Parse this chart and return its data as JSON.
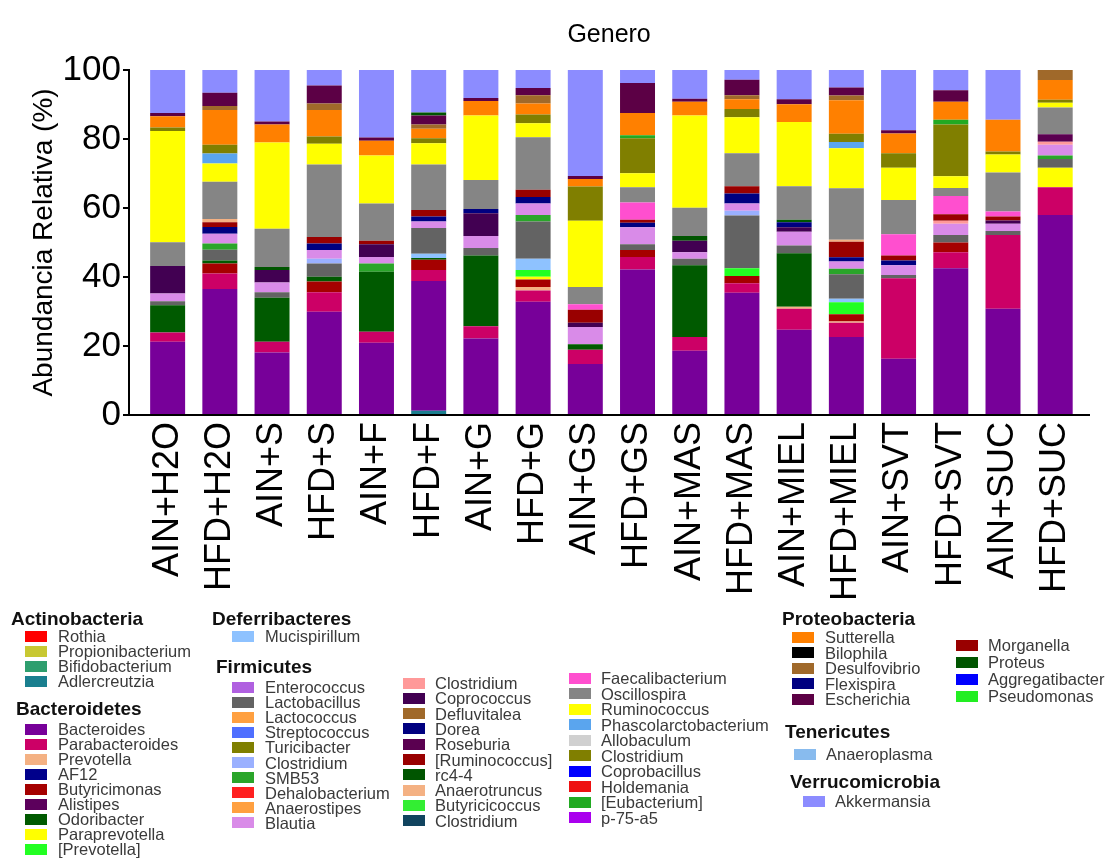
{
  "chart_data": {
    "type": "bar",
    "title": "Genero",
    "ylabel": "Abundancia Relativa (%)",
    "categories": [
      "AIN+H2O",
      "HFD+H2O",
      "AIN+S",
      "HFD+S",
      "AIN+F",
      "HFD+F",
      "AIN+G",
      "HFD+G",
      "AIN+GS",
      "HFD+GS",
      "AIN+MAS",
      "HFD+MAS",
      "AIN+MIEL",
      "HFD+MIEL",
      "AIN+SVT",
      "HFD+SVT",
      "AIN+SUC",
      "HFD+SUC"
    ],
    "stacked": true,
    "ylim": [
      0,
      100
    ],
    "yticks": [
      0,
      20,
      40,
      60,
      80,
      100
    ],
    "legend": "bottom",
    "annotations": [
      "Actinobacteria",
      "Bacteroidetes",
      "Deferribacteres",
      "Firmicutes",
      "Proteobacteria",
      "Tenericutes",
      "Verrucomicrobia"
    ],
    "series": [
      {
        "name": "Rothia",
        "color": "#ff0000",
        "values": [
          0,
          0,
          0,
          0,
          0,
          0,
          0,
          0,
          0,
          0,
          0,
          0,
          0,
          0,
          0,
          0,
          0,
          0
        ]
      },
      {
        "name": "Propionibacterium",
        "color": "#c8c832",
        "values": [
          0,
          0,
          0,
          0,
          0,
          0,
          0,
          0,
          0,
          0,
          0,
          0,
          0,
          0,
          0,
          0,
          0,
          0
        ]
      },
      {
        "name": "Bifidobacterium",
        "color": "#2e9e6e",
        "values": [
          0,
          0,
          0,
          0,
          0,
          0,
          0,
          0,
          0,
          0,
          0,
          0,
          0,
          0,
          0,
          0,
          0,
          0
        ]
      },
      {
        "name": "Adlercreutzia",
        "color": "#1a7f8f",
        "values": [
          0,
          0,
          0,
          0,
          0,
          1.2,
          0,
          0,
          0,
          0,
          0,
          0,
          0,
          0,
          0,
          0,
          0,
          0
        ]
      },
      {
        "name": "Bacteroides",
        "color": "#770099",
        "values": [
          21.2,
          36.5,
          18.1,
          29.9,
          20.9,
          37.6,
          22.2,
          32.8,
          14.8,
          42.2,
          18.6,
          35.4,
          24.7,
          22.6,
          16.3,
          42.5,
          30.8,
          58.0
        ]
      },
      {
        "name": "Parabacteroides",
        "color": "#cc0066",
        "values": [
          2.7,
          4.5,
          3.1,
          5.7,
          3.2,
          3.2,
          3.5,
          3.3,
          4.1,
          3.6,
          4.0,
          2.8,
          6.1,
          4.1,
          23.3,
          4.7,
          21.4,
          8.0
        ]
      },
      {
        "name": "Prevotella",
        "color": "#f4b183",
        "values": [
          0,
          0,
          0,
          0,
          0,
          0,
          0,
          1.0,
          0,
          0,
          0,
          0,
          0.6,
          0.4,
          0,
          0,
          0,
          0
        ]
      },
      {
        "name": "AF12",
        "color": "#00008b",
        "values": [
          0,
          0,
          0,
          0,
          0,
          0,
          0,
          0,
          0,
          0,
          0,
          0,
          0,
          0,
          0,
          0,
          0,
          0
        ]
      },
      {
        "name": "Butyricimonas",
        "color": "#a50000",
        "values": [
          0,
          2.9,
          0,
          3.1,
          0,
          3.0,
          0,
          2.2,
          0,
          2.0,
          0,
          2.1,
          0,
          2.1,
          0,
          2.8,
          0,
          0
        ]
      },
      {
        "name": "Alistipes",
        "color": "#5c005c",
        "values": [
          0,
          0,
          0,
          0,
          0,
          0,
          0,
          0,
          0,
          0,
          0,
          0,
          0,
          0,
          0,
          0,
          0,
          0
        ]
      },
      {
        "name": "Odoribacter",
        "color": "#005a00",
        "values": [
          7.9,
          0.9,
          12.8,
          1.4,
          17.4,
          0.5,
          20.5,
          0,
          1.6,
          0,
          20.8,
          0,
          15.5,
          0,
          0,
          0,
          0,
          0
        ]
      },
      {
        "name": "Paraprevotella",
        "color": "#ffff00",
        "values": [
          0,
          0,
          0,
          0,
          0,
          0,
          0,
          0.8,
          0,
          0,
          0,
          0,
          0,
          0,
          0,
          0,
          0,
          5.7
        ]
      },
      {
        "name": "[Prevotella]",
        "color": "#22ff22",
        "values": [
          0,
          0,
          0,
          0,
          0,
          0,
          0,
          1.9,
          0,
          0,
          0,
          2.2,
          0,
          3.5,
          0,
          0,
          0,
          0
        ]
      },
      {
        "name": "Mucispirillum",
        "color": "#8ec2ff",
        "values": [
          0,
          0,
          0,
          0,
          0,
          1.2,
          0,
          3.3,
          0,
          0,
          0,
          0,
          0,
          1.0,
          0,
          0,
          0,
          0
        ]
      },
      {
        "name": "Enterococcus",
        "color": "#b060e0",
        "values": [
          0,
          0,
          0,
          0,
          0,
          0,
          0,
          0,
          0,
          0,
          0,
          0,
          0,
          0,
          0,
          0,
          0,
          0
        ]
      },
      {
        "name": "Lactobacillus",
        "color": "#636363",
        "values": [
          1.2,
          3.1,
          1.6,
          3.8,
          0,
          7.5,
          2.2,
          10.8,
          0,
          1.7,
          1.9,
          15.3,
          2.2,
          7.1,
          1.0,
          2.2,
          1.1,
          2.5
        ]
      },
      {
        "name": "Lactococcus",
        "color": "#ffa040",
        "values": [
          0,
          0,
          0,
          0,
          0,
          0,
          0,
          0,
          0,
          0,
          0,
          0,
          0,
          0,
          0,
          0,
          0,
          0
        ]
      },
      {
        "name": "Streptococcus",
        "color": "#4f6fff",
        "values": [
          0,
          0,
          0,
          0,
          0,
          0,
          0,
          0,
          0,
          0,
          0,
          0,
          0,
          0,
          0,
          0,
          0,
          0
        ]
      },
      {
        "name": "Turicibacter",
        "color": "#7f7f00",
        "values": [
          0,
          0,
          0,
          0,
          0,
          0,
          0,
          0,
          0,
          0,
          0,
          0,
          0,
          0,
          0,
          0,
          0,
          0
        ]
      },
      {
        "name": "Clostridium",
        "color": "#9ab0ff",
        "values": [
          0,
          0,
          0,
          1.4,
          0,
          0,
          0,
          0,
          0,
          0,
          0,
          1.4,
          0,
          0,
          0,
          0,
          0,
          0
        ]
      },
      {
        "name": "SMB53",
        "color": "#2aa52a",
        "values": [
          0,
          1.8,
          0,
          0,
          2.4,
          0,
          0,
          1.9,
          0,
          0,
          0,
          0,
          0,
          1.6,
          0,
          0,
          0,
          1.0
        ]
      },
      {
        "name": "Dehalobacterium",
        "color": "#ff2020",
        "values": [
          0,
          0,
          0,
          0,
          0,
          0,
          0,
          0,
          0,
          0,
          0,
          0,
          0,
          0,
          0,
          0,
          0,
          0
        ]
      },
      {
        "name": "Anaerostipes",
        "color": "#ffa040",
        "values": [
          0,
          0,
          0,
          0,
          0,
          0,
          0,
          0,
          0,
          0,
          0,
          0,
          0,
          0,
          0,
          0,
          0,
          0
        ]
      },
      {
        "name": "Blautia",
        "color": "#d98be8",
        "values": [
          2.2,
          2.8,
          2.8,
          2.5,
          1.9,
          1.9,
          3.5,
          3.3,
          5.0,
          4.9,
          1.9,
          2.1,
          4.0,
          2.1,
          2.8,
          3.2,
          2.1,
          3.1
        ]
      },
      {
        "name": "Clostridium",
        "color": "#ff9999",
        "values": [
          0,
          0,
          0,
          0,
          0,
          0,
          0,
          0,
          0,
          0,
          0,
          0,
          0,
          0,
          0,
          0.9,
          0,
          0.9
        ]
      },
      {
        "name": "Coprococcus",
        "color": "#420052",
        "values": [
          8.0,
          0,
          3.6,
          0,
          3.7,
          0,
          6.6,
          0,
          1.2,
          0,
          3.3,
          0,
          1.3,
          0,
          0,
          0,
          1.0,
          0
        ]
      },
      {
        "name": "Defluvitalea",
        "color": "#a0692a",
        "values": [
          0,
          0,
          0,
          0,
          0,
          0,
          0,
          0,
          0,
          0,
          0,
          0,
          0,
          0,
          0,
          0,
          0,
          0
        ]
      },
      {
        "name": "Dorea",
        "color": "#000080",
        "values": [
          0,
          2.0,
          0,
          1.9,
          0,
          1.4,
          1.2,
          1.9,
          0,
          1.3,
          0,
          2.9,
          1.5,
          1.2,
          1.4,
          0,
          0,
          0
        ]
      },
      {
        "name": "Roseburia",
        "color": "#5a0050",
        "values": [
          0,
          0,
          0,
          0,
          0,
          0,
          0,
          0,
          0,
          0,
          0,
          0,
          0,
          0,
          0,
          0,
          0,
          2.2
        ]
      },
      {
        "name": "[Ruminococcus]",
        "color": "#990000",
        "values": [
          0,
          1.4,
          0,
          1.9,
          1.0,
          1.9,
          0,
          2.1,
          3.8,
          0.9,
          0,
          2.1,
          0,
          4.5,
          1.4,
          1.9,
          1.1,
          0
        ]
      },
      {
        "name": "rc4-4",
        "color": "#005500",
        "values": [
          0,
          0,
          0.9,
          0,
          0,
          0,
          0,
          0,
          0,
          0,
          1.4,
          0,
          0.7,
          0,
          0,
          0,
          0,
          0
        ]
      },
      {
        "name": "Anaerotruncus",
        "color": "#f4b183",
        "values": [
          0,
          0.9,
          0,
          0,
          0,
          0,
          0,
          0,
          0,
          0,
          0,
          0,
          0,
          0.6,
          0,
          0,
          0,
          0
        ]
      },
      {
        "name": "Butyricicoccus",
        "color": "#33ee33",
        "values": [
          0,
          0,
          0,
          0,
          0,
          0,
          0,
          0,
          0,
          0,
          0,
          0,
          0,
          0,
          0,
          0,
          0,
          0
        ]
      },
      {
        "name": "Clostridium",
        "color": "#11445f",
        "values": [
          0,
          0,
          0,
          0,
          0,
          0,
          0,
          0,
          0,
          0,
          0,
          0,
          0,
          0,
          0,
          0,
          0,
          0
        ]
      },
      {
        "name": "Faecalibacterium",
        "color": "#ff4fcf",
        "values": [
          0,
          0,
          0,
          0,
          0,
          0,
          0,
          0,
          1.6,
          5.0,
          0,
          0,
          0,
          0,
          6.2,
          5.3,
          1.5,
          0
        ]
      },
      {
        "name": "Oscillospira",
        "color": "#858585",
        "values": [
          6.9,
          10.8,
          11.1,
          21.0,
          10.8,
          13.2,
          8.4,
          15.2,
          5.0,
          4.4,
          8.2,
          9.6,
          9.7,
          14.9,
          9.9,
          2.3,
          11.3,
          7.7
        ]
      },
      {
        "name": "Ruminococcus",
        "color": "#ffff00",
        "values": [
          32.2,
          5.3,
          25.0,
          6.0,
          13.9,
          6.2,
          18.7,
          4.1,
          19.2,
          4.1,
          26.7,
          10.4,
          18.6,
          11.6,
          9.4,
          3.4,
          5.2,
          1.4
        ]
      },
      {
        "name": "Phascolarctobacterium",
        "color": "#5aa5ee",
        "values": [
          0,
          2.9,
          0,
          0,
          0,
          0,
          0,
          0,
          0,
          0,
          0,
          0,
          0,
          1.8,
          0,
          0,
          0,
          0
        ]
      },
      {
        "name": "Allobaculum",
        "color": "#d0d0d0",
        "values": [
          0,
          0,
          0,
          0,
          0,
          0,
          0,
          0,
          0,
          0,
          0,
          0,
          0,
          0,
          0,
          0,
          0,
          0
        ]
      },
      {
        "name": "Clostridium",
        "color": "#807f00",
        "values": [
          1.0,
          2.5,
          0,
          2.1,
          0,
          1.4,
          0,
          2.5,
          9.9,
          10.1,
          0,
          2.4,
          0,
          2.4,
          4.2,
          15.0,
          0.9,
          0.9
        ]
      },
      {
        "name": "Coprobacillus",
        "color": "#0000ff",
        "values": [
          0,
          0,
          0,
          0,
          0,
          0,
          0,
          0,
          0,
          0,
          0,
          0,
          0,
          0,
          0,
          0,
          0,
          0
        ]
      },
      {
        "name": "Holdemania",
        "color": "#ee1111",
        "values": [
          0,
          0,
          0,
          0,
          0,
          0,
          0,
          0,
          0,
          0,
          0,
          0,
          0,
          0,
          0,
          0,
          0,
          0
        ]
      },
      {
        "name": "[Eubacterium]",
        "color": "#22aa22",
        "values": [
          0,
          0,
          0,
          0,
          0,
          0,
          0,
          0,
          0,
          0.9,
          0,
          0,
          0,
          0,
          0,
          1.4,
          0,
          0
        ]
      },
      {
        "name": "p-75-a5",
        "color": "#aa00ee",
        "values": [
          0,
          0,
          0,
          0,
          0,
          0,
          0,
          0,
          0,
          0,
          0,
          0,
          0,
          0,
          0,
          0,
          0,
          0
        ]
      },
      {
        "name": "Sutterella",
        "color": "#ff8000",
        "values": [
          3.3,
          10.1,
          5.2,
          7.7,
          4.3,
          2.8,
          4.2,
          3.2,
          2.2,
          6.4,
          4.0,
          2.8,
          5.2,
          9.7,
          5.7,
          5.2,
          9.2,
          5.7
        ]
      },
      {
        "name": "Bilophila",
        "color": "#000000",
        "values": [
          0,
          0,
          0,
          0,
          0,
          0,
          0,
          0,
          0,
          0,
          0,
          0,
          0,
          0,
          0,
          0,
          0,
          0
        ]
      },
      {
        "name": "Desulfovibrio",
        "color": "#a0692a",
        "values": [
          0,
          1.2,
          0,
          1.9,
          0,
          1.2,
          0,
          2.4,
          0,
          0,
          0,
          1.2,
          0,
          1.4,
          0,
          0,
          0,
          2.9
        ]
      },
      {
        "name": "Flexispira",
        "color": "#000080",
        "values": [
          0,
          0,
          0,
          0,
          0,
          0,
          0,
          0,
          0,
          0,
          0,
          0,
          0,
          0,
          0,
          0,
          0,
          0
        ]
      },
      {
        "name": "Escherichia",
        "color": "#5c0045",
        "values": [
          0.9,
          3.8,
          0.9,
          5.2,
          0.9,
          2.6,
          0.9,
          2.1,
          0.9,
          8.7,
          0.9,
          4.5,
          1.4,
          2.3,
          0.9,
          3.3,
          0,
          0
        ]
      },
      {
        "name": "Morganella",
        "color": "#990000",
        "values": [
          0,
          0,
          0,
          0,
          0,
          0,
          0,
          0,
          0,
          0,
          0,
          0,
          0,
          0,
          0,
          0,
          0,
          0
        ]
      },
      {
        "name": "Proteus",
        "color": "#005500",
        "values": [
          0,
          0,
          0,
          0,
          0,
          0.9,
          0,
          0,
          0,
          0,
          0,
          0,
          0,
          0,
          0,
          0,
          0,
          0
        ]
      },
      {
        "name": "Aggregatibacter",
        "color": "#0000ff",
        "values": [
          0,
          0,
          0,
          0,
          0,
          0,
          0,
          0,
          0,
          0,
          0,
          0,
          0,
          0,
          0,
          0,
          0,
          0
        ]
      },
      {
        "name": "Pseudomonas",
        "color": "#22ee22",
        "values": [
          0,
          0,
          0,
          0,
          0,
          0,
          0,
          0,
          0,
          0,
          0,
          0,
          0,
          0,
          0,
          0,
          0,
          0
        ]
      },
      {
        "name": "Anaeroplasma",
        "color": "#88bbee",
        "values": [
          0,
          0,
          0,
          0,
          0,
          0,
          0,
          0,
          0,
          0,
          0,
          0,
          0,
          0,
          0,
          0,
          0,
          0
        ]
      },
      {
        "name": "Akkermansia",
        "color": "#8c8cff",
        "values": [
          12.5,
          6.6,
          14.9,
          4.5,
          19.6,
          12.3,
          8.1,
          5.2,
          30.7,
          3.8,
          8.3,
          2.8,
          8.5,
          5.1,
          17.5,
          5.9,
          14.4,
          0
        ]
      }
    ]
  }
}
